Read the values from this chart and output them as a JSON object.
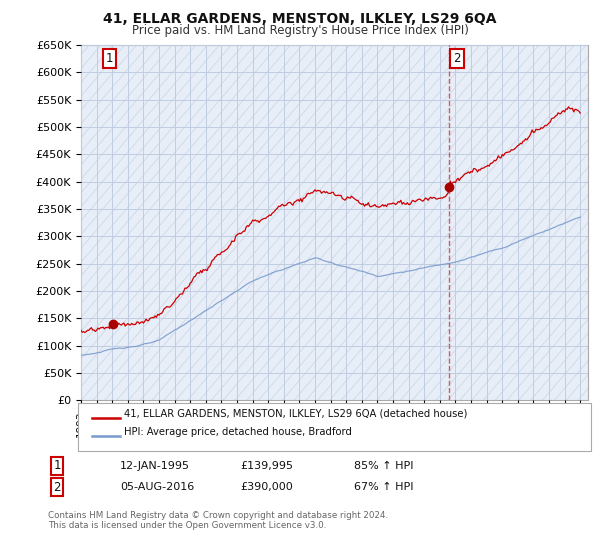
{
  "title": "41, ELLAR GARDENS, MENSTON, ILKLEY, LS29 6QA",
  "subtitle": "Price paid vs. HM Land Registry's House Price Index (HPI)",
  "ylabel_ticks": [
    "£0",
    "£50K",
    "£100K",
    "£150K",
    "£200K",
    "£250K",
    "£300K",
    "£350K",
    "£400K",
    "£450K",
    "£500K",
    "£550K",
    "£600K",
    "£650K"
  ],
  "ytick_values": [
    0,
    50000,
    100000,
    150000,
    200000,
    250000,
    300000,
    350000,
    400000,
    450000,
    500000,
    550000,
    600000,
    650000
  ],
  "xmin": 1993.0,
  "xmax": 2025.5,
  "ymin": 0,
  "ymax": 650000,
  "sale1_date": 1995.04,
  "sale1_price": 139995,
  "sale2_date": 2016.59,
  "sale2_price": 390000,
  "legend_line1": "41, ELLAR GARDENS, MENSTON, ILKLEY, LS29 6QA (detached house)",
  "legend_line2": "HPI: Average price, detached house, Bradford",
  "annotation1_date": "12-JAN-1995",
  "annotation1_price": "£139,995",
  "annotation1_hpi": "85% ↑ HPI",
  "annotation2_date": "05-AUG-2016",
  "annotation2_price": "£390,000",
  "annotation2_hpi": "67% ↑ HPI",
  "footer": "Contains HM Land Registry data © Crown copyright and database right 2024.\nThis data is licensed under the Open Government Licence v3.0.",
  "line_color_red": "#cc0000",
  "line_color_blue": "#7799cc",
  "marker_color_red": "#aa0000",
  "bg_plot": "#e8eef8",
  "bg_fig": "#ffffff",
  "grid_color": "#c0cce0",
  "hatch_color": "#c8d4e4",
  "vline_color": "#cc4444",
  "box_color": "#cc0000"
}
